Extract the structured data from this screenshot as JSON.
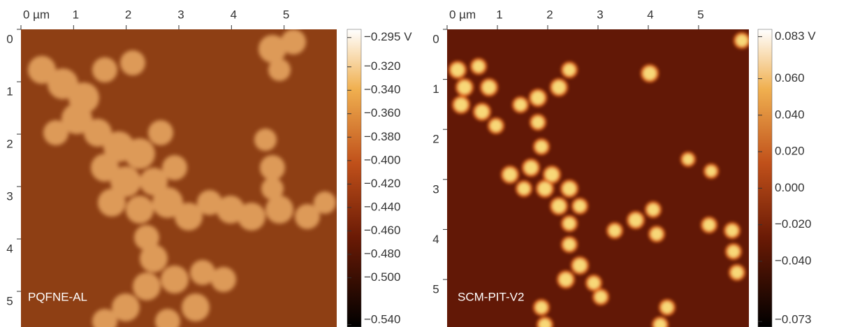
{
  "panels": [
    {
      "label": "PQFNE-AL",
      "xlim": [
        0,
        6.0
      ],
      "ylim": [
        0,
        5.68
      ],
      "xticks": [
        {
          "value": 0,
          "label": "0 µm"
        },
        1,
        2,
        3,
        4,
        5
      ],
      "yticks": [
        0,
        1,
        2,
        3,
        4,
        5
      ],
      "colorbar": {
        "lim": [
          -0.542,
          -0.288
        ],
        "ticks": [
          {
            "value": -0.295,
            "label": "−0.295 V"
          },
          {
            "value": -0.32,
            "label": "−0.320"
          },
          {
            "value": -0.34,
            "label": "−0.340"
          },
          {
            "value": -0.36,
            "label": "−0.360"
          },
          {
            "value": -0.38,
            "label": "−0.380"
          },
          {
            "value": -0.4,
            "label": "−0.400"
          },
          {
            "value": -0.42,
            "label": "−0.420"
          },
          {
            "value": -0.44,
            "label": "−0.440"
          },
          {
            "value": -0.46,
            "label": "−0.460"
          },
          {
            "value": -0.48,
            "label": "−0.480"
          },
          {
            "value": -0.5,
            "label": "−0.500"
          },
          {
            "value": -0.54,
            "label": "−0.540"
          }
        ]
      }
    },
    {
      "label": "SCM-PIT-V2",
      "xlim": [
        0,
        6.0
      ],
      "ylim": [
        0,
        5.95
      ],
      "xticks": [
        {
          "value": 0,
          "label": "0 µm"
        },
        1,
        2,
        3,
        4,
        5
      ],
      "yticks": [
        0,
        1,
        2,
        3,
        4,
        5
      ],
      "colorbar": {
        "lim": [
          -0.076,
          0.087
        ],
        "ticks": [
          {
            "value": 0.083,
            "label": "0.083 V"
          },
          {
            "value": 0.06,
            "label": "0.060"
          },
          {
            "value": 0.04,
            "label": "0.040"
          },
          {
            "value": 0.02,
            "label": "0.020"
          },
          {
            "value": 0.0,
            "label": "0.000"
          },
          {
            "value": -0.02,
            "label": "−0.020"
          },
          {
            "value": -0.04,
            "label": "−0.040"
          },
          {
            "value": -0.073,
            "label": "−0.073"
          }
        ]
      }
    }
  ]
}
